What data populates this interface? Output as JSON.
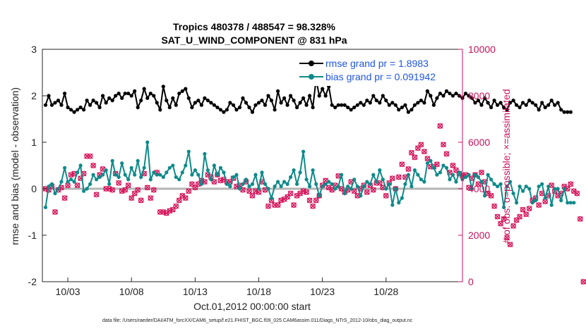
{
  "chart_data": {
    "type": "line",
    "title": "Tropics 480378 / 488547 = 98.328%",
    "subtitle": "SAT_U_WIND_COMPONENT @ 831 hPa",
    "xlabel": "Oct.01,2012 00:00:00 start",
    "ylabel_left": "rmse and bias (model - observation)",
    "ylabel_right": "# of obs: o=possible; ×=assimilated",
    "footnote": "data file: /Users/raeder/DAI/ATM_forcXX/CAM6_setup/f.e21.FHIST_BGC.f09_025.CAM6assim.011/Diags_NTrS_2012-10/obs_diag_output.nc",
    "ylim_left": [
      -2,
      3
    ],
    "ylim_right": [
      0,
      10000
    ],
    "xlim": [
      1.0,
      34.0
    ],
    "left_ticks": [
      "-2",
      "-1",
      "0",
      "1",
      "2",
      "3"
    ],
    "right_ticks": [
      "0",
      "2000",
      "4000",
      "6000",
      "8000",
      "10000"
    ],
    "x_ticks": [
      {
        "day": 3,
        "label": "10/03"
      },
      {
        "day": 8,
        "label": "10/08"
      },
      {
        "day": 13,
        "label": "10/13"
      },
      {
        "day": 18,
        "label": "10/18"
      },
      {
        "day": 23,
        "label": "10/23"
      },
      {
        "day": 28,
        "label": "10/28"
      }
    ],
    "legend": {
      "placement": "top-right",
      "entries": [
        "rmse grand pr = 1.8983",
        "bias grand pr = 0.091942"
      ]
    },
    "colors": {
      "rmse": "#000000",
      "bias": "#0f8a8a",
      "obs": "#d4145a",
      "zero_line": "#b5b5b5",
      "right_axis": "#c8125c",
      "legend_text": "#1f55e0"
    },
    "series": [
      {
        "name": "rmse",
        "x_start": 1.25,
        "x_step": 0.25,
        "values": [
          1.8,
          2.0,
          1.8,
          1.85,
          1.9,
          1.8,
          2.05,
          1.75,
          1.7,
          1.65,
          1.7,
          1.75,
          1.7,
          1.9,
          1.8,
          1.9,
          1.85,
          1.75,
          2.0,
          1.85,
          1.95,
          1.9,
          2.0,
          2.05,
          1.95,
          2.05,
          2.05,
          2.0,
          2.1,
          1.75,
          1.9,
          2.15,
          1.95,
          2.05,
          2.0,
          1.85,
          1.7,
          2.2,
          1.9,
          1.75,
          1.95,
          1.8,
          2.05,
          2.1,
          2.15,
          1.95,
          1.75,
          1.85,
          1.9,
          1.8,
          1.95,
          1.9,
          1.85,
          1.8,
          1.75,
          1.7,
          1.65,
          1.7,
          1.85,
          1.8,
          1.7,
          1.75,
          1.95,
          1.85,
          1.75,
          1.65,
          1.8,
          1.85,
          1.9,
          1.8,
          2.0,
          1.9,
          1.7,
          2.1,
          1.85,
          1.95,
          1.8,
          2.0,
          1.9,
          1.75,
          1.85,
          1.95,
          1.8,
          2.0,
          1.75,
          2.35,
          2.0,
          2.15,
          2.0,
          2.2,
          1.8,
          1.75,
          1.8,
          1.8,
          1.8,
          1.75,
          1.7,
          1.75,
          1.8,
          1.85,
          1.8,
          1.9,
          1.85,
          2.0,
          1.9,
          1.85,
          2.0,
          1.9,
          1.8,
          1.85,
          1.8,
          1.7,
          1.75,
          1.8,
          1.65,
          1.7,
          1.8,
          1.85,
          1.9,
          1.85,
          2.1,
          2.0,
          1.8,
          1.95,
          2.05,
          2.0,
          2.1,
          2.05,
          2.0,
          2.05,
          2.0,
          1.95,
          2.05,
          2.0,
          1.95,
          1.85,
          1.9,
          1.8,
          1.95,
          1.85,
          1.75,
          1.9,
          1.8,
          1.85,
          1.75,
          1.7,
          1.85,
          1.9,
          1.8,
          1.75,
          1.85,
          1.8,
          1.9,
          1.85,
          1.8,
          1.7,
          1.85,
          1.75,
          1.8,
          1.9,
          1.8,
          1.85,
          1.7,
          1.65,
          1.65,
          1.65
        ]
      },
      {
        "name": "bias",
        "x_start": 1.25,
        "x_step": 0.25,
        "values": [
          -0.4,
          0.05,
          0.1,
          -0.1,
          0.0,
          0.15,
          0.45,
          0.15,
          0.2,
          0.15,
          0.35,
          0.5,
          -0.05,
          0.0,
          0.1,
          0.3,
          0.2,
          0.25,
          0.3,
          0.4,
          0.1,
          0.6,
          0.3,
          0.25,
          0.55,
          0.3,
          0.2,
          0.45,
          0.3,
          0.6,
          0.25,
          0.45,
          1.0,
          0.2,
          0.35,
          0.3,
          0.3,
          0.25,
          0.35,
          0.45,
          0.5,
          0.25,
          0.2,
          0.35,
          0.5,
          0.8,
          0.3,
          0.4,
          0.3,
          0.1,
          0.75,
          0.4,
          0.2,
          0.5,
          0.3,
          0.45,
          0.35,
          0.1,
          0.05,
          0.25,
          0.3,
          0.0,
          0.1,
          0.2,
          0.05,
          0.1,
          0.3,
          0.0,
          0.35,
          0.1,
          0.0,
          -0.2,
          0.05,
          0.15,
          0.05,
          0.15,
          0.1,
          0.25,
          0.4,
          0.1,
          0.35,
          0.8,
          0.2,
          0.05,
          0.4,
          0.1,
          -0.15,
          0.05,
          0.1,
          0.15,
          0.1,
          0.0,
          0.05,
          0.3,
          -0.1,
          0.05,
          0.0,
          0.2,
          0.05,
          -0.15,
          0.05,
          0.15,
          0.1,
          0.3,
          0.15,
          0.4,
          0.2,
          0.0,
          0.1,
          -0.35,
          0.0,
          -0.3,
          -0.2,
          0.1,
          0.3,
          0.05,
          0.4,
          0.3,
          0.2,
          0.15,
          0.55,
          0.6,
          0.45,
          0.3,
          0.35,
          0.5,
          0.45,
          0.2,
          0.3,
          0.15,
          0.35,
          0.2,
          0.25,
          0.3,
          0.0,
          0.3,
          0.25,
          0.15,
          -0.15,
          0.3,
          0.2,
          0.1,
          0.05,
          0.1,
          -0.4,
          0.05,
          0.15,
          -0.1,
          -0.3,
          0.05,
          -0.05,
          0.05,
          0.0,
          -0.3,
          -0.25,
          0.05,
          0.1,
          -0.2,
          0.05,
          -0.35,
          0.0,
          0.0,
          -0.25,
          0.0,
          -0.3,
          -0.3,
          -0.3
        ]
      },
      {
        "name": "obs_possible",
        "axis": "right",
        "x_start": 1.25,
        "x_step": 0.25,
        "values": [
          4000,
          3950,
          4100,
          3000,
          3950,
          4050,
          3600,
          4150,
          4600,
          4650,
          4150,
          4450,
          4650,
          5400,
          5400,
          5000,
          3750,
          4600,
          4850,
          4000,
          4000,
          3950,
          4650,
          4250,
          3900,
          3950,
          4150,
          3600,
          3800,
          3950,
          3500,
          4650,
          4050,
          3600,
          3950,
          4700,
          3000,
          3000,
          2950,
          3050,
          3100,
          3250,
          3500,
          3700,
          3600,
          3900,
          4200,
          4050,
          4200,
          4350,
          4300,
          4600,
          4500,
          4300,
          4600,
          4350,
          4400,
          4300,
          4300,
          4450,
          4100,
          4150,
          3950,
          4300,
          3900,
          3700,
          3900,
          3850,
          4300,
          3950,
          3250,
          3500,
          3300,
          3300,
          3500,
          3550,
          3650,
          3800,
          3300,
          3700,
          3800,
          3900,
          3850,
          3500,
          3250,
          3500,
          3700,
          4150,
          4350,
          4050,
          3950,
          4150,
          4550,
          4000,
          3850,
          3950,
          4300,
          3900,
          3700,
          4000,
          4150,
          3850,
          4150,
          3950,
          4250,
          4250,
          4050,
          3700,
          4250,
          4450,
          4000,
          4500,
          5050,
          4500,
          4850,
          5550,
          5350,
          5750,
          5900,
          5600,
          5300,
          4950,
          4950,
          5050,
          6700,
          5900,
          5500,
          4700,
          5000,
          4800,
          4650,
          4550,
          4600,
          4050,
          4450,
          4600,
          4200,
          4700,
          4300,
          3800,
          3700,
          3250,
          2800,
          2500,
          2700,
          1900,
          1600,
          2400,
          2650,
          2800,
          3100,
          2900,
          3150,
          3500,
          3600,
          3300,
          3800,
          3450,
          3700,
          4150,
          3900,
          3700,
          3800,
          4100,
          4000,
          4200,
          3900,
          3800,
          2700,
          0
        ]
      },
      {
        "name": "obs_assimilated",
        "axis": "right",
        "x_start": 1.25,
        "x_step": 0.25,
        "values": [
          4000,
          3950,
          4100,
          3000,
          3950,
          4050,
          3600,
          4150,
          4600,
          4650,
          4150,
          4450,
          4650,
          5400,
          5400,
          5000,
          3750,
          4600,
          4850,
          4000,
          4000,
          3950,
          4650,
          4250,
          3900,
          3950,
          4150,
          3600,
          3800,
          3950,
          3500,
          4650,
          4050,
          3600,
          3950,
          4700,
          3000,
          3000,
          2950,
          3050,
          3100,
          3250,
          3500,
          3700,
          3600,
          3900,
          4200,
          4050,
          4200,
          4350,
          4300,
          4600,
          4500,
          4300,
          4600,
          4350,
          4400,
          4300,
          4300,
          4450,
          4100,
          4150,
          3950,
          4300,
          3900,
          3700,
          3900,
          3850,
          4300,
          3950,
          3250,
          3500,
          3300,
          3300,
          3500,
          3550,
          3650,
          3800,
          3300,
          3700,
          3800,
          3900,
          3850,
          3500,
          3250,
          3500,
          3700,
          4150,
          4350,
          4050,
          3950,
          4150,
          4550,
          4000,
          3850,
          3950,
          4300,
          3900,
          3700,
          4000,
          4150,
          3850,
          4150,
          3950,
          4250,
          4250,
          4050,
          3700,
          4250,
          4450,
          4000,
          4500,
          5050,
          4500,
          4850,
          5550,
          5350,
          5750,
          5900,
          5600,
          5300,
          4950,
          4950,
          5050,
          6700,
          5900,
          5500,
          4700,
          5000,
          4800,
          4650,
          4550,
          4600,
          4050,
          4450,
          4600,
          4200,
          4700,
          4300,
          3800,
          3700,
          3250,
          2800,
          2500,
          2700,
          1900,
          1600,
          2400,
          2650,
          2800,
          3100,
          2900,
          3150,
          3500,
          3600,
          3300,
          3800,
          3450,
          3700,
          4150,
          3900,
          3700,
          3800,
          4100,
          4000,
          4200,
          3900,
          3800,
          2700,
          0
        ]
      }
    ]
  }
}
